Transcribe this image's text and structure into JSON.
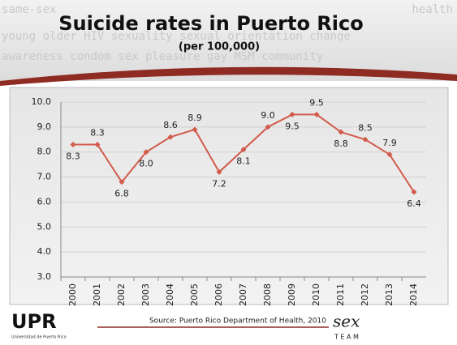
{
  "header": {
    "title": "Suicide rates in Puerto Rico",
    "subtitle": "(per 100,000)",
    "background_words": [
      [
        "same-sex",
        "health"
      ],
      [
        "young older HIV sexuality sexual orientation change"
      ],
      [
        "awareness condom sex pleasure gay MSM community"
      ]
    ]
  },
  "chart_data": {
    "type": "line",
    "categories": [
      "2000",
      "2001",
      "2002",
      "2003",
      "2004",
      "2005",
      "2006",
      "2007",
      "2008",
      "2009",
      "2010",
      "2011",
      "2012",
      "2013",
      "2014"
    ],
    "values": [
      8.3,
      8.3,
      6.8,
      8.0,
      8.6,
      8.9,
      7.2,
      8.1,
      9.0,
      9.5,
      9.5,
      8.8,
      8.5,
      7.9,
      6.4
    ],
    "value_labels": [
      "8.3",
      "8.3",
      "6.8",
      "8.0",
      "8.6",
      "8.9",
      "7.2",
      "8.1",
      "9.0",
      "9.5",
      "9.5",
      "8.8",
      "8.5",
      "7.9",
      "6.4"
    ],
    "color": "#d25b4b",
    "ylim": [
      3,
      10
    ],
    "yticks": [
      {
        "value": 3,
        "label": "3.0"
      },
      {
        "value": 4,
        "label": "4.0"
      },
      {
        "value": 5,
        "label": "5.0"
      },
      {
        "value": 6,
        "label": "6.0"
      },
      {
        "value": 7,
        "label": "7.0"
      },
      {
        "value": 8,
        "label": "8.0"
      },
      {
        "value": 9,
        "label": "9.0"
      },
      {
        "value": 10,
        "label": "10.0"
      }
    ],
    "grid": true
  },
  "footer": {
    "source": "Source: Puerto Rico Department of Health, 2010",
    "logo": "UPR",
    "logo_caption": "Universidad de Puerto Rico",
    "team_logo": "sex",
    "team_caption": "T E A M"
  }
}
